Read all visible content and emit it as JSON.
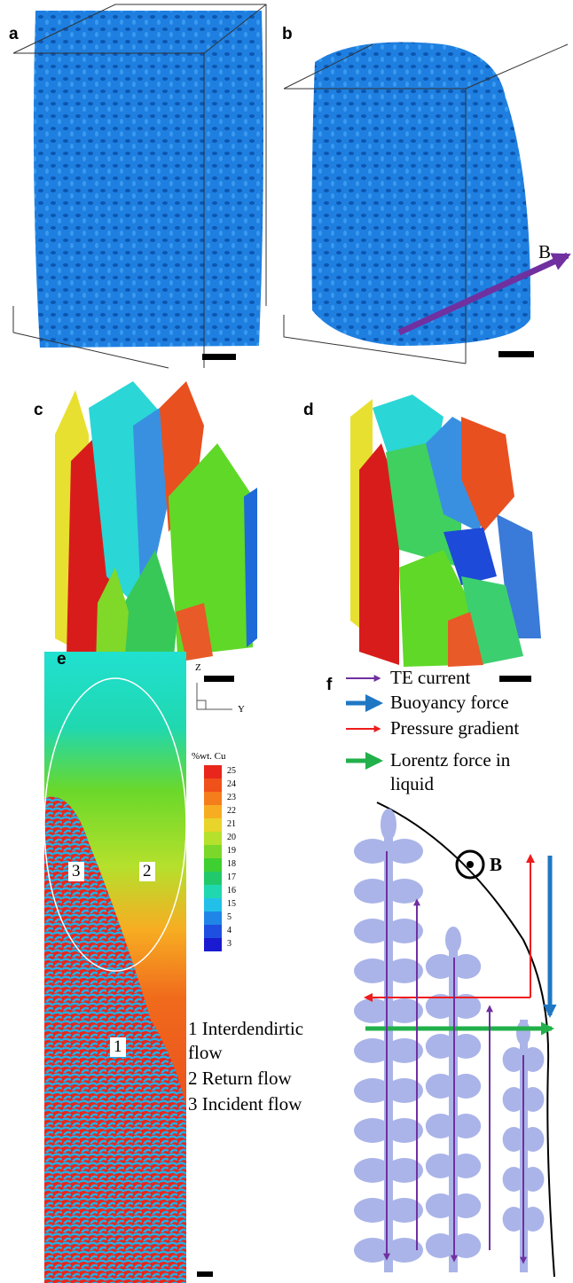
{
  "panels": {
    "a": {
      "label": "a"
    },
    "b": {
      "label": "b",
      "arrow_label": "B"
    },
    "c": {
      "label": "c"
    },
    "d": {
      "label": "d"
    },
    "e": {
      "label": "e",
      "axes": {
        "z": "Z",
        "y": "Y"
      },
      "colorbar": {
        "title": "%wt. Cu",
        "ticks": [
          "25",
          "24",
          "23",
          "22",
          "21",
          "20",
          "19",
          "18",
          "17",
          "16",
          "15",
          "5",
          "4",
          "3"
        ],
        "colors": [
          "#e8261c",
          "#f0501a",
          "#f57d1c",
          "#f7ad22",
          "#e8d42a",
          "#b5e02c",
          "#7bd82a",
          "#3ecf30",
          "#22c96a",
          "#20d8b0",
          "#22c0e8",
          "#1f86e8",
          "#1f4fe0",
          "#1a1ad0"
        ]
      },
      "regions": [
        "3",
        "2",
        "1"
      ],
      "notes": [
        "1 Interdendirtic flow",
        "2 Return flow",
        "3 Incident flow"
      ]
    },
    "f": {
      "label": "f",
      "field_label": "B",
      "legend": [
        {
          "label": "TE current",
          "color": "#7030a0"
        },
        {
          "label": "Buoyancy force",
          "color": "#1f77c4"
        },
        {
          "label": "Pressure gradient",
          "color": "#ee1c1c"
        },
        {
          "label": "Lorentz force in liquid",
          "color": "#22b04b"
        }
      ]
    }
  }
}
